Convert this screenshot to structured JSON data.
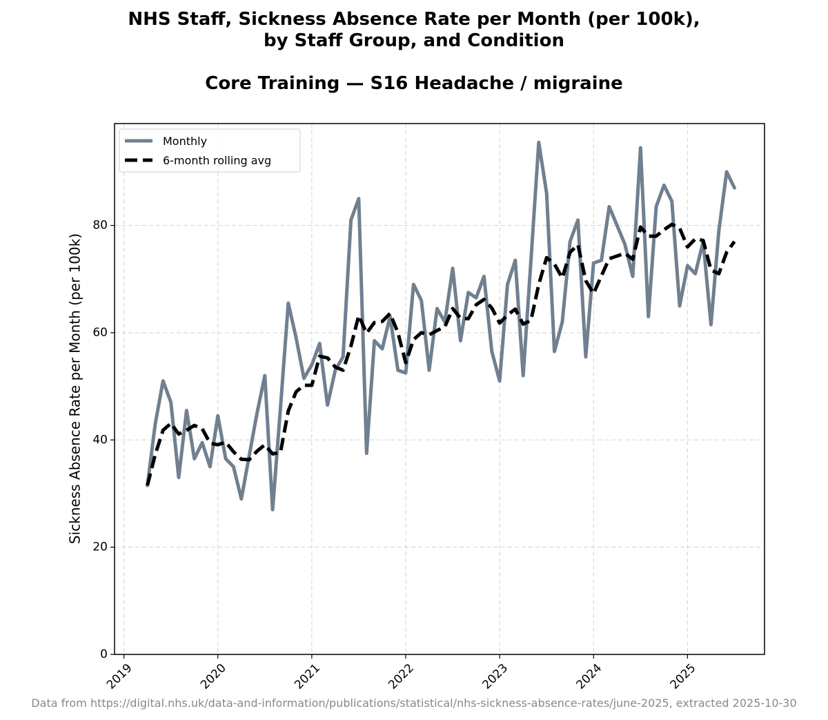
{
  "chart_data": {
    "type": "line",
    "title_lines": [
      "NHS Staff, Sickness Absence Rate per Month (per 100k),",
      "by Staff Group, and Condition",
      "Core Training — S16 Headache / migraine"
    ],
    "xlabel": "",
    "ylabel": "Sickness Absence Rate per Month (per 100k)",
    "x_ticks": [
      "2019",
      "2020",
      "2021",
      "2022",
      "2023",
      "2024",
      "2025"
    ],
    "y_ticks": [
      0,
      20,
      40,
      60,
      80
    ],
    "ylim": [
      0,
      99
    ],
    "xlim": [
      2018.9,
      2025.82
    ],
    "grid": true,
    "legend_position": "top-left",
    "x_start": 2019.25,
    "x_step_months": 1,
    "series": [
      {
        "name": "Monthly",
        "color": "#708090",
        "style": "solid",
        "values": [
          31.5,
          43.0,
          51.0,
          47.0,
          33.0,
          45.5,
          36.5,
          39.5,
          35.0,
          44.5,
          36.5,
          35.0,
          29.0,
          37.0,
          45.0,
          52.0,
          27.0,
          46.0,
          65.5,
          59.0,
          51.5,
          54.0,
          58.0,
          46.5,
          53.0,
          55.5,
          81.0,
          85.0,
          37.5,
          58.5,
          57.0,
          63.0,
          53.0,
          52.5,
          69.0,
          66.0,
          53.0,
          64.5,
          62.0,
          72.0,
          58.5,
          67.5,
          66.5,
          70.5,
          56.5,
          51.0,
          69.0,
          73.5,
          52.0,
          73.5,
          95.5,
          86.0,
          56.5,
          62.0,
          77.0,
          81.0,
          55.5,
          73.0,
          73.5,
          83.5,
          80.0,
          76.5,
          70.5,
          94.5,
          63.0,
          83.5,
          87.5,
          84.5,
          65.0,
          72.5,
          71.0,
          77.0,
          61.5,
          79.0,
          90.0,
          87.0
        ]
      },
      {
        "name": "6-month rolling avg",
        "color": "#000000",
        "style": "dashed",
        "values": [
          31.5,
          37.3,
          41.8,
          43.1,
          41.1,
          41.8,
          42.7,
          42.1,
          39.4,
          39.1,
          39.6,
          37.8,
          36.4,
          36.3,
          37.9,
          39.1,
          37.4,
          37.7,
          45.4,
          49.0,
          50.2,
          50.2,
          55.6,
          55.3,
          53.6,
          53.0,
          57.5,
          63.2,
          59.9,
          61.9,
          62.1,
          63.6,
          60.0,
          54.4,
          58.7,
          60.0,
          59.6,
          60.4,
          61.1,
          64.5,
          62.7,
          62.6,
          65.2,
          66.2,
          64.6,
          61.8,
          63.3,
          64.4,
          61.6,
          62.3,
          69.0,
          74.0,
          72.8,
          70.2,
          75.0,
          76.4,
          69.7,
          67.3,
          70.6,
          73.8,
          74.3,
          74.8,
          73.7,
          79.7,
          78.0,
          78.0,
          79.2,
          80.2,
          79.5,
          76.0,
          77.5,
          77.2,
          71.7,
          71.0,
          75.0,
          77.0
        ]
      }
    ],
    "footer": "Data from https://digital.nhs.uk/data-and-information/publications/statistical/nhs-sickness-absence-rates/june-2025, extracted 2025-10-30"
  }
}
